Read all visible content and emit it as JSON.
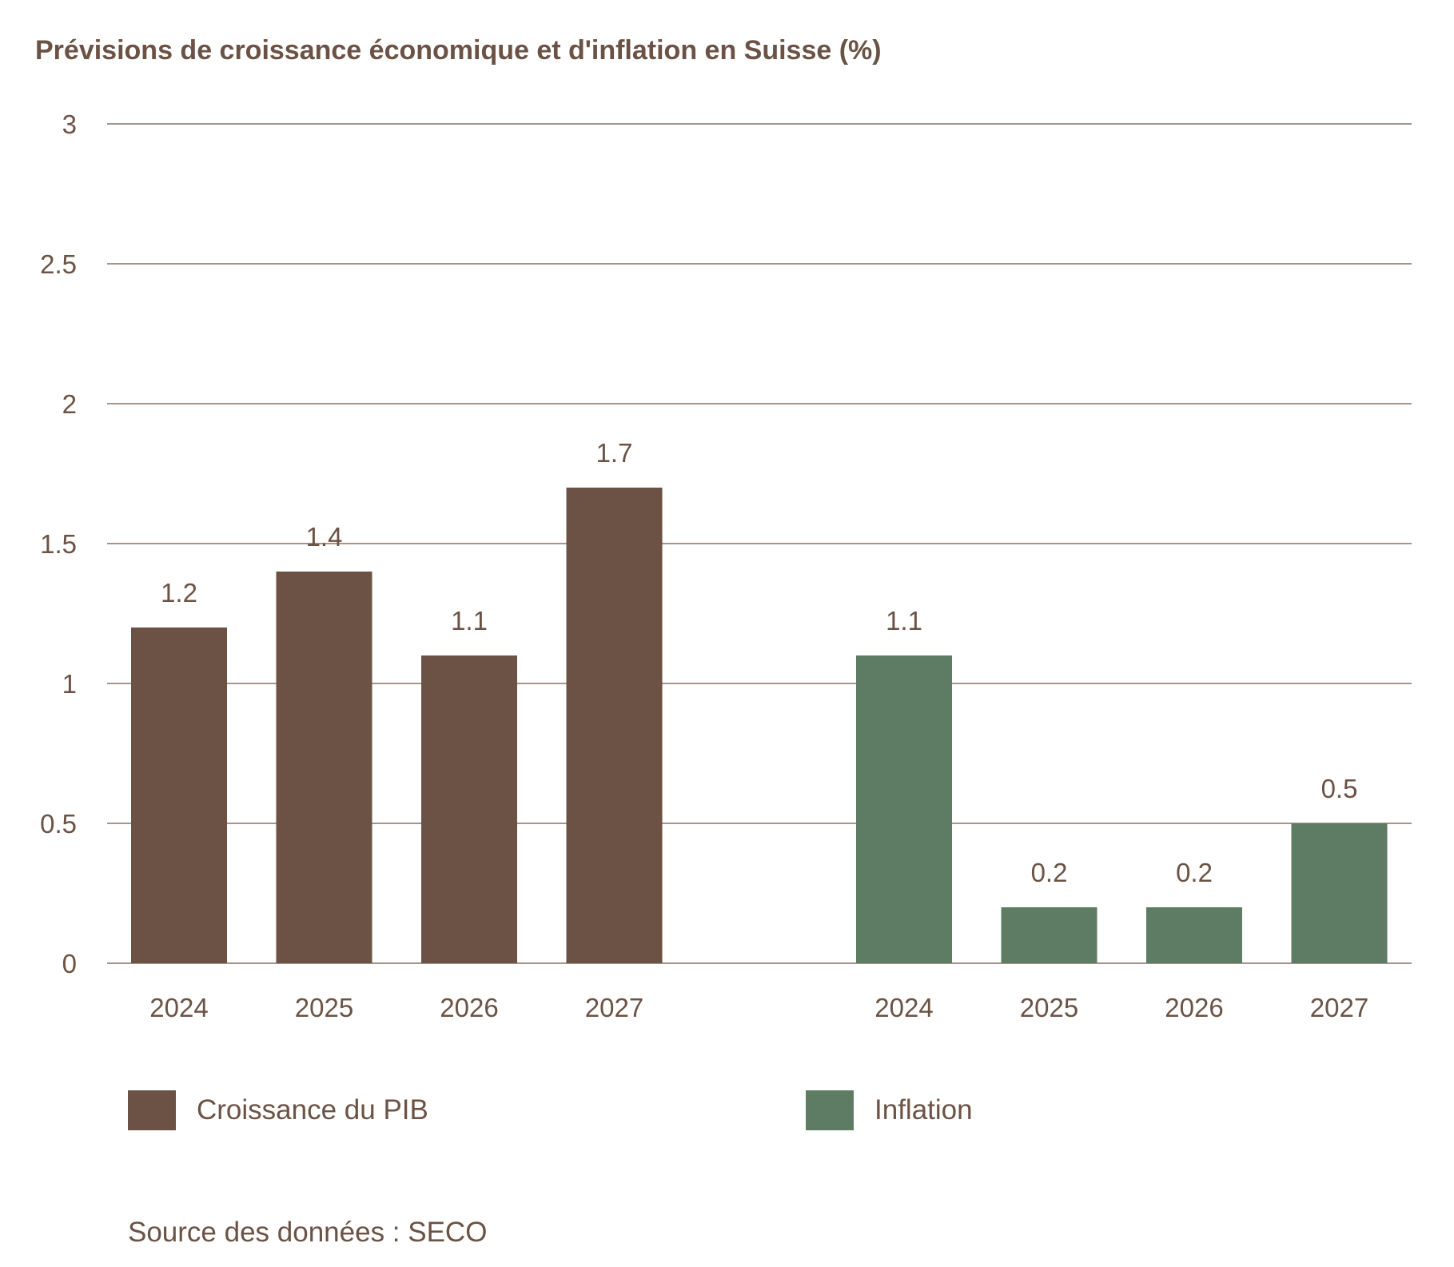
{
  "title": "Prévisions de croissance économique et d'inflation en Suisse (%)",
  "source": "Source des données : SECO",
  "colors": {
    "gdp": "#6b5244",
    "inflation": "#5e7c64",
    "grid": "#8a7266",
    "text": "#6b5244"
  },
  "chart_data": {
    "type": "bar",
    "title": "Prévisions de croissance économique et d'inflation en Suisse (%)",
    "xlabel": "",
    "ylabel": "",
    "ylim": [
      0,
      3
    ],
    "yticks": [
      "0",
      "0.5",
      "1",
      "1.5",
      "2",
      "2.5",
      "3"
    ],
    "grid": true,
    "legend_position": "bottom",
    "groups": [
      {
        "name": "Croissance du PIB",
        "color": "#6b5244",
        "categories": [
          "2024",
          "2025",
          "2026",
          "2027"
        ],
        "values": [
          1.2,
          1.4,
          1.1,
          1.7
        ],
        "labels": [
          "1.2",
          "1.4",
          "1.1",
          "1.7"
        ]
      },
      {
        "name": "Inflation",
        "color": "#5e7c64",
        "categories": [
          "2024",
          "2025",
          "2026",
          "2027"
        ],
        "values": [
          1.1,
          0.2,
          0.2,
          0.5
        ],
        "labels": [
          "1.1",
          "0.2",
          "0.2",
          "0.5"
        ]
      }
    ]
  }
}
